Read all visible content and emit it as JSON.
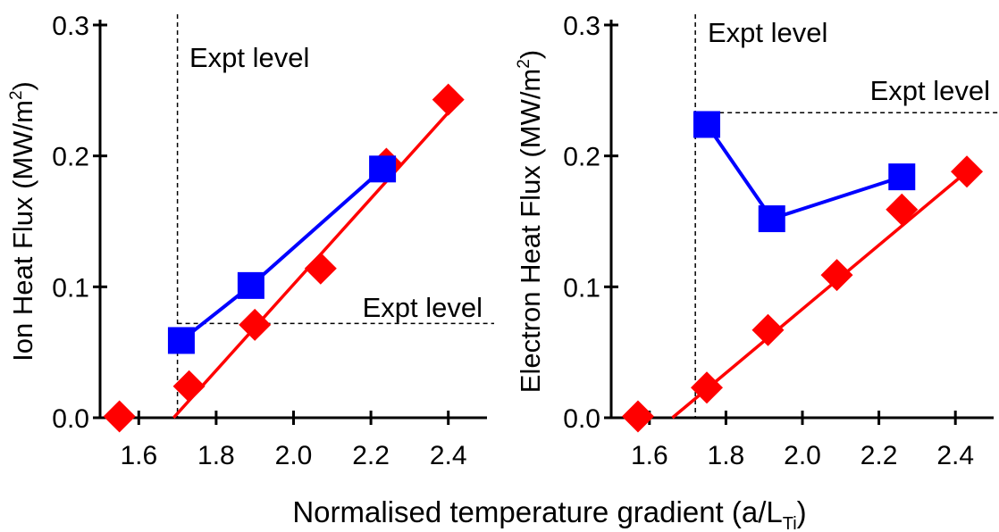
{
  "figure": {
    "xlabel": "Normalised temperature gradient (a/L",
    "xlabel_sub": "Ti",
    "xlabel_close": ")"
  },
  "chart_data": [
    {
      "type": "line",
      "ylabel": "Ion Heat Flux (MW/m",
      "ylabel_sup": "2",
      "ylabel_close": ")",
      "xlim": [
        1.5,
        2.5
      ],
      "ylim": [
        0.0,
        0.3
      ],
      "xticks": [
        "1.6",
        "1.8",
        "2.0",
        "2.2",
        "2.4"
      ],
      "yticks": [
        "0.0",
        "0.1",
        "0.2",
        "0.3"
      ],
      "vline": {
        "x": 1.7,
        "label": "Expt level"
      },
      "hline": {
        "y": 0.072,
        "label": "Expt level"
      },
      "colors": {
        "diamond": "#ff0000",
        "square": "#0000ff"
      },
      "series": [
        {
          "marker": "diamond",
          "color": "#ff0000",
          "x": [
            1.55,
            1.73,
            1.9,
            2.07,
            2.24,
            2.4
          ],
          "y": [
            0.001,
            0.024,
            0.071,
            0.114,
            0.194,
            0.243
          ]
        },
        {
          "marker": "square",
          "color": "#0000ff",
          "x": [
            1.71,
            1.89,
            2.23
          ],
          "y": [
            0.059,
            0.101,
            0.19
          ]
        }
      ],
      "fit_line": {
        "color": "#ff0000",
        "x": [
          1.69,
          2.43
        ],
        "y": [
          0.0,
          0.243
        ]
      }
    },
    {
      "type": "line",
      "ylabel": "Electron Heat Flux (MW/m",
      "ylabel_sup": "2",
      "ylabel_close": ")",
      "xlim": [
        1.5,
        2.5
      ],
      "ylim": [
        0.0,
        0.3
      ],
      "xticks": [
        "1.6",
        "1.8",
        "2.0",
        "2.2",
        "2.4"
      ],
      "yticks": [
        "0.0",
        "0.1",
        "0.2",
        "0.3"
      ],
      "vline": {
        "x": 1.72,
        "label": "Expt level"
      },
      "hline": {
        "y": 0.233,
        "label": "Expt level"
      },
      "colors": {
        "diamond": "#ff0000",
        "square": "#0000ff"
      },
      "series": [
        {
          "marker": "diamond",
          "color": "#ff0000",
          "x": [
            1.57,
            1.75,
            1.91,
            2.09,
            2.26,
            2.43
          ],
          "y": [
            0.001,
            0.023,
            0.067,
            0.109,
            0.159,
            0.188
          ]
        },
        {
          "marker": "square",
          "color": "#0000ff",
          "x": [
            1.75,
            1.92,
            2.26
          ],
          "y": [
            0.224,
            0.152,
            0.184
          ]
        }
      ],
      "fit_line": {
        "color": "#ff0000",
        "x": [
          1.66,
          2.43
        ],
        "y": [
          0.0,
          0.188
        ]
      }
    }
  ]
}
